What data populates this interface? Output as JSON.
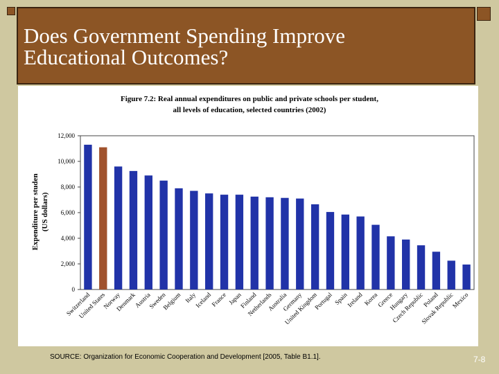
{
  "slide": {
    "title_line1": "Does Government Spending Improve",
    "title_line2": "Educational Outcomes?",
    "source": "SOURCE: Organization for Economic Cooperation and Development [2005, Table B1.1].",
    "page_number": "7-8"
  },
  "colors": {
    "bar": "#2133a8",
    "highlight_bar": "#a0522d",
    "title_bg": "#8c5525",
    "slide_bg": "#cfc8a0"
  },
  "chart_data": {
    "type": "bar",
    "title_line1": "Figure 7.2: Real annual expenditures on public and private schools per student,",
    "title_line2": "all levels of education, selected countries (2002)",
    "ylabel_line1": "Expenditure per studen",
    "ylabel_line2": "(US dollars)",
    "ylim": [
      0,
      12000
    ],
    "yticks": [
      0,
      2000,
      4000,
      6000,
      8000,
      10000,
      12000
    ],
    "ytick_labels": [
      "0",
      "2,000",
      "4,000",
      "6,000",
      "8,000",
      "10,000",
      "12,000"
    ],
    "grid": false,
    "highlight_category": "United States",
    "categories": [
      "Switzerland",
      "United States",
      "Norway",
      "Denmark",
      "Austria",
      "Sweden",
      "Belgium",
      "Italy",
      "Iceland",
      "France",
      "Japan",
      "Finland",
      "Netherlands",
      "Australia",
      "Germany",
      "United Kingdom",
      "Portugal",
      "Spain",
      "Ireland",
      "Korea",
      "Greece",
      "Hungary",
      "Czech Republic",
      "Poland",
      "Slovak Republic",
      "Mexico"
    ],
    "values": [
      11300,
      11100,
      9600,
      9250,
      8900,
      8500,
      7900,
      7700,
      7500,
      7400,
      7400,
      7250,
      7200,
      7150,
      7100,
      6650,
      6050,
      5850,
      5700,
      5050,
      4150,
      3900,
      3450,
      2950,
      2250,
      1950
    ]
  }
}
